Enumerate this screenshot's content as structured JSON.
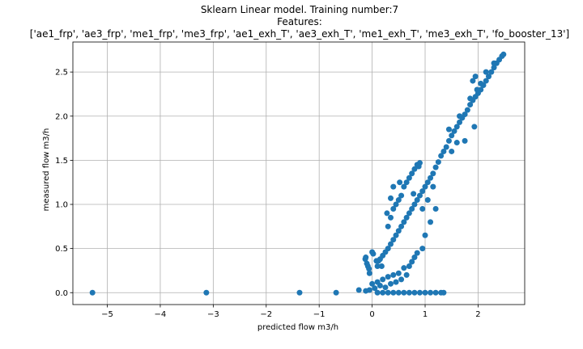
{
  "chart_data": {
    "type": "scatter",
    "title_lines": [
      "Sklearn Linear model. Training number:7",
      "Features:",
      "['ae1_frp', 'ae3_frp', 'me1_frp', 'me3_frp', 'ae1_exh_T', 'ae3_exh_T', 'me1_exh_T', 'me3_exh_T', 'fo_booster_13']"
    ],
    "xlabel": "predicted flow m3/h",
    "ylabel": "measured flow m3/h",
    "xlim": [
      -5.65,
      2.88
    ],
    "ylim": [
      -0.135,
      2.84
    ],
    "xticks": [
      -5,
      -4,
      -3,
      -2,
      -1,
      0,
      1,
      2
    ],
    "xtick_labels": [
      "−5",
      "−4",
      "−3",
      "−2",
      "−1",
      "0",
      "1",
      "2"
    ],
    "yticks": [
      0.0,
      0.5,
      1.0,
      1.5,
      2.0,
      2.5
    ],
    "ytick_labels": [
      "0.0",
      "0.5",
      "1.0",
      "1.5",
      "2.0",
      "2.5"
    ],
    "grid": true,
    "marker_color": "#1f77b4",
    "series": [
      {
        "points": [
          [
            -5.28,
            0.0
          ],
          [
            -3.13,
            0.0
          ],
          [
            -1.37,
            0.0
          ],
          [
            -0.68,
            0.0
          ],
          [
            -0.25,
            0.03
          ],
          [
            -0.12,
            0.02
          ],
          [
            -0.05,
            0.03
          ],
          [
            -0.12,
            0.4
          ],
          [
            -0.13,
            0.38
          ],
          [
            -0.1,
            0.33
          ],
          [
            -0.08,
            0.3
          ],
          [
            -0.06,
            0.27
          ],
          [
            -0.05,
            0.22
          ],
          [
            0.0,
            0.46
          ],
          [
            0.02,
            0.44
          ],
          [
            0.08,
            0.36
          ],
          [
            0.12,
            0.36
          ],
          [
            0.18,
            0.3
          ],
          [
            0.0,
            0.1
          ],
          [
            0.05,
            0.05
          ],
          [
            0.1,
            0.12
          ],
          [
            0.15,
            0.08
          ],
          [
            0.2,
            0.15
          ],
          [
            0.25,
            0.06
          ],
          [
            0.3,
            0.18
          ],
          [
            0.35,
            0.1
          ],
          [
            0.4,
            0.2
          ],
          [
            0.45,
            0.12
          ],
          [
            0.5,
            0.22
          ],
          [
            0.55,
            0.15
          ],
          [
            0.6,
            0.28
          ],
          [
            0.65,
            0.2
          ],
          [
            0.7,
            0.3
          ],
          [
            0.75,
            0.35
          ],
          [
            0.8,
            0.4
          ],
          [
            0.85,
            0.45
          ],
          [
            0.1,
            0.3
          ],
          [
            0.15,
            0.38
          ],
          [
            0.2,
            0.42
          ],
          [
            0.25,
            0.46
          ],
          [
            0.3,
            0.5
          ],
          [
            0.35,
            0.55
          ],
          [
            0.4,
            0.6
          ],
          [
            0.45,
            0.65
          ],
          [
            0.5,
            0.7
          ],
          [
            0.55,
            0.75
          ],
          [
            0.6,
            0.8
          ],
          [
            0.65,
            0.85
          ],
          [
            0.7,
            0.9
          ],
          [
            0.75,
            0.95
          ],
          [
            0.8,
            1.0
          ],
          [
            0.85,
            1.05
          ],
          [
            0.9,
            1.1
          ],
          [
            0.95,
            1.15
          ],
          [
            1.0,
            1.2
          ],
          [
            1.05,
            1.25
          ],
          [
            1.1,
            1.3
          ],
          [
            1.15,
            1.35
          ],
          [
            1.2,
            1.42
          ],
          [
            1.25,
            1.48
          ],
          [
            1.3,
            1.55
          ],
          [
            1.35,
            1.6
          ],
          [
            1.4,
            1.65
          ],
          [
            1.45,
            1.72
          ],
          [
            1.5,
            1.78
          ],
          [
            1.55,
            1.83
          ],
          [
            1.6,
            1.88
          ],
          [
            1.65,
            1.93
          ],
          [
            1.7,
            1.98
          ],
          [
            1.75,
            2.02
          ],
          [
            1.8,
            2.07
          ],
          [
            1.85,
            2.13
          ],
          [
            1.9,
            2.18
          ],
          [
            1.95,
            2.22
          ],
          [
            2.0,
            2.26
          ],
          [
            2.05,
            2.3
          ],
          [
            2.1,
            2.35
          ],
          [
            2.15,
            2.4
          ],
          [
            2.2,
            2.45
          ],
          [
            2.25,
            2.5
          ],
          [
            2.3,
            2.55
          ],
          [
            2.35,
            2.6
          ],
          [
            2.4,
            2.64
          ],
          [
            2.45,
            2.68
          ],
          [
            2.48,
            2.7
          ],
          [
            0.3,
            0.75
          ],
          [
            0.35,
            0.85
          ],
          [
            0.4,
            0.95
          ],
          [
            0.45,
            1.0
          ],
          [
            0.5,
            1.05
          ],
          [
            0.55,
            1.1
          ],
          [
            0.6,
            1.2
          ],
          [
            0.65,
            1.25
          ],
          [
            0.7,
            1.3
          ],
          [
            0.75,
            1.35
          ],
          [
            0.8,
            1.4
          ],
          [
            0.85,
            1.45
          ],
          [
            0.9,
            1.47
          ],
          [
            0.88,
            1.43
          ],
          [
            0.28,
            0.9
          ],
          [
            0.35,
            1.07
          ],
          [
            0.4,
            1.2
          ],
          [
            0.52,
            1.25
          ],
          [
            0.78,
            1.12
          ],
          [
            0.95,
            0.95
          ],
          [
            1.05,
            1.05
          ],
          [
            1.15,
            1.2
          ],
          [
            0.95,
            0.5
          ],
          [
            1.0,
            0.65
          ],
          [
            1.1,
            0.8
          ],
          [
            1.2,
            0.95
          ],
          [
            1.45,
            1.85
          ],
          [
            1.65,
            2.0
          ],
          [
            1.85,
            2.2
          ],
          [
            2.05,
            2.37
          ],
          [
            1.98,
            2.3
          ],
          [
            2.15,
            2.5
          ],
          [
            2.3,
            2.6
          ],
          [
            1.9,
            2.4
          ],
          [
            1.95,
            2.45
          ],
          [
            1.93,
            1.88
          ],
          [
            1.75,
            1.72
          ],
          [
            1.6,
            1.7
          ],
          [
            1.5,
            1.6
          ],
          [
            0.1,
            0.0
          ],
          [
            0.2,
            0.0
          ],
          [
            0.3,
            0.0
          ],
          [
            0.4,
            0.0
          ],
          [
            0.5,
            0.0
          ],
          [
            0.6,
            0.0
          ],
          [
            0.7,
            0.0
          ],
          [
            0.8,
            0.0
          ],
          [
            0.9,
            0.0
          ],
          [
            1.0,
            0.0
          ],
          [
            1.1,
            0.0
          ],
          [
            1.2,
            0.0
          ],
          [
            1.3,
            0.0
          ],
          [
            1.35,
            0.0
          ]
        ]
      }
    ]
  }
}
